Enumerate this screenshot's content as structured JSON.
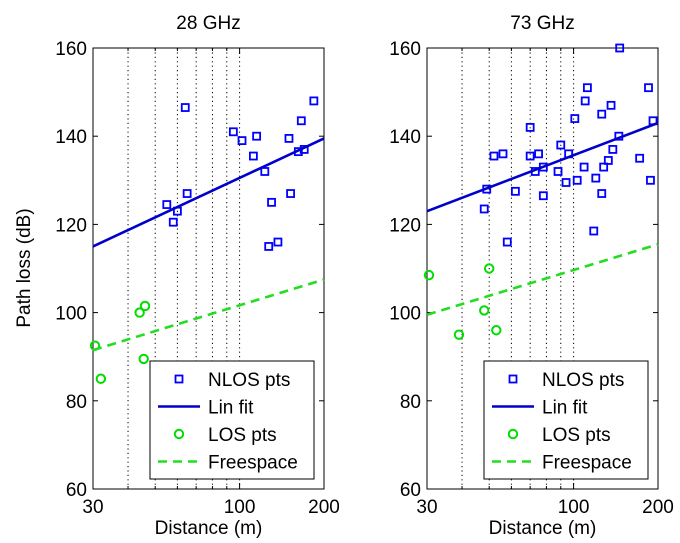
{
  "figure": {
    "shared_ylabel": "Path loss (dB)",
    "colors": {
      "nlos": "#0000ff",
      "fit": "#0000cc",
      "los": "#00dd00",
      "freespace": "#22dd22",
      "axes": "#000000",
      "grid": "#000000"
    }
  },
  "chart_data": [
    {
      "type": "scatter",
      "title": "28 GHz",
      "xlabel": "Distance (m)",
      "ylabel": "Path loss (dB)",
      "xscale": "log",
      "xlim": [
        30,
        200
      ],
      "ylim": [
        60,
        160
      ],
      "xticks": [
        30,
        100,
        200
      ],
      "yticks": [
        60,
        80,
        100,
        120,
        140,
        160
      ],
      "grid": "vertical dotted at log minor ticks",
      "legend_position": "bottom-right",
      "legend": [
        "NLOS pts",
        "Lin fit",
        "LOS pts",
        "Freespace"
      ],
      "series": [
        {
          "name": "NLOS pts",
          "marker": "square",
          "color": "#0000ff",
          "points": [
            [
              55,
              124.5
            ],
            [
              64,
              146.5
            ],
            [
              65,
              127
            ],
            [
              60,
              123
            ],
            [
              58,
              120.5
            ],
            [
              102,
              139
            ],
            [
              95,
              141
            ],
            [
              115,
              140
            ],
            [
              112,
              135.5
            ],
            [
              123,
              132
            ],
            [
              130,
              125
            ],
            [
              127,
              115
            ],
            [
              137,
              116
            ],
            [
              150,
              139.5
            ],
            [
              152,
              127
            ],
            [
              162,
              136.5
            ],
            [
              166,
              143.5
            ],
            [
              170,
              137
            ],
            [
              184,
              148
            ]
          ]
        },
        {
          "name": "Lin fit",
          "kind": "line",
          "style": "solid",
          "color": "#0000cc",
          "x": [
            30,
            200
          ],
          "y": [
            115,
            139.5
          ]
        },
        {
          "name": "LOS pts",
          "marker": "circle",
          "color": "#00dd00",
          "points": [
            [
              30.5,
              92.5
            ],
            [
              32,
              85
            ],
            [
              44,
              100
            ],
            [
              46,
              101.5
            ],
            [
              45.5,
              89.5
            ]
          ]
        },
        {
          "name": "Freespace",
          "kind": "line",
          "style": "dashed",
          "color": "#22dd22",
          "x": [
            30,
            200
          ],
          "y": [
            91.5,
            107.5
          ]
        }
      ]
    },
    {
      "type": "scatter",
      "title": "73 GHz",
      "xlabel": "Distance (m)",
      "ylabel": "",
      "xscale": "log",
      "xlim": [
        30,
        200
      ],
      "ylim": [
        60,
        160
      ],
      "xticks": [
        30,
        100,
        200
      ],
      "yticks": [
        60,
        80,
        100,
        120,
        140,
        160
      ],
      "grid": "vertical dotted at log minor ticks",
      "legend_position": "bottom-right",
      "legend": [
        "NLOS pts",
        "Lin fit",
        "LOS pts",
        "Freespace"
      ],
      "series": [
        {
          "name": "NLOS pts",
          "marker": "square",
          "color": "#0000ff",
          "points": [
            [
              48,
              123.5
            ],
            [
              49,
              128
            ],
            [
              52,
              135.5
            ],
            [
              56,
              136
            ],
            [
              58,
              116
            ],
            [
              62,
              127.5
            ],
            [
              70,
              142
            ],
            [
              70,
              135.5
            ],
            [
              73,
              132
            ],
            [
              75,
              136
            ],
            [
              78,
              133
            ],
            [
              78,
              126.5
            ],
            [
              88,
              132
            ],
            [
              90,
              138
            ],
            [
              96,
              136
            ],
            [
              94,
              129.5
            ],
            [
              101,
              144
            ],
            [
              103,
              130
            ],
            [
              109,
              133
            ],
            [
              110,
              148
            ],
            [
              112,
              151
            ],
            [
              120,
              130.5
            ],
            [
              118,
              118.5
            ],
            [
              126,
              145
            ],
            [
              126,
              127
            ],
            [
              128,
              133
            ],
            [
              133,
              134.5
            ],
            [
              136,
              147
            ],
            [
              138,
              137
            ],
            [
              145,
              140
            ],
            [
              146,
              160
            ],
            [
              172,
              135
            ],
            [
              185,
              151
            ],
            [
              188,
              130
            ],
            [
              192,
              143.5
            ]
          ]
        },
        {
          "name": "Lin fit",
          "kind": "line",
          "style": "solid",
          "color": "#0000cc",
          "x": [
            30,
            200
          ],
          "y": [
            123,
            143
          ]
        },
        {
          "name": "LOS pts",
          "marker": "circle",
          "color": "#00dd00",
          "points": [
            [
              30.5,
              108.5
            ],
            [
              39,
              95
            ],
            [
              48,
              100.5
            ],
            [
              50,
              110
            ],
            [
              53,
              96
            ]
          ]
        },
        {
          "name": "Freespace",
          "kind": "line",
          "style": "dashed",
          "color": "#22dd22",
          "x": [
            30,
            200
          ],
          "y": [
            99.5,
            115.5
          ]
        }
      ]
    }
  ]
}
